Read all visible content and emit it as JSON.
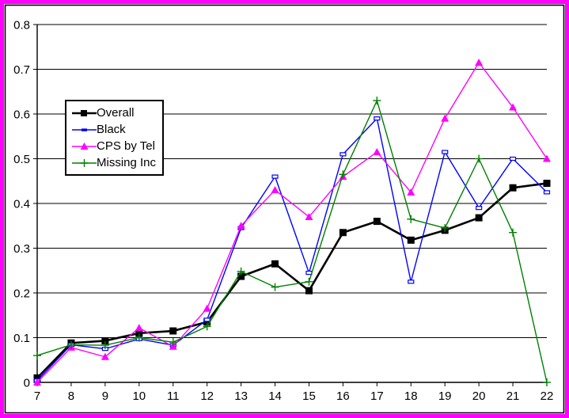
{
  "page": {
    "background_color": "#FFFFFF",
    "outer_border_color": "#FF00FF",
    "inner_border_color": "#000000"
  },
  "chart_data": {
    "type": "line",
    "title": "",
    "xlabel": "",
    "ylabel": "",
    "categories": [
      7,
      8,
      9,
      10,
      11,
      12,
      13,
      14,
      15,
      16,
      17,
      18,
      19,
      20,
      21,
      22
    ],
    "x_tick_labels": [
      "7",
      "8",
      "9",
      "10",
      "11",
      "12",
      "13",
      "14",
      "15",
      "16",
      "17",
      "18",
      "19",
      "20",
      "21",
      "22"
    ],
    "ylim": [
      0,
      0.8
    ],
    "ytick_step": 0.1,
    "y_tick_labels": [
      "0",
      "0.1",
      "0.2",
      "0.3",
      "0.4",
      "0.5",
      "0.6",
      "0.7",
      "0.8"
    ],
    "grid": "horizontal",
    "gridline_color": "#000000",
    "legend_position": "upper-left-inside",
    "series": [
      {
        "name": "Overall",
        "color": "#000000",
        "marker": "square",
        "line_width": 2.6,
        "values": [
          0.01,
          0.088,
          0.093,
          0.11,
          0.115,
          0.135,
          0.237,
          0.265,
          0.205,
          0.335,
          0.36,
          0.318,
          0.34,
          0.368,
          0.435,
          0.445
        ]
      },
      {
        "name": "Black",
        "color": "#0000FF",
        "marker": "dash",
        "line_width": 1.4,
        "values": [
          0.004,
          0.084,
          0.075,
          0.097,
          0.083,
          0.14,
          0.345,
          0.46,
          0.245,
          0.51,
          0.59,
          0.225,
          0.515,
          0.39,
          0.5,
          0.425
        ]
      },
      {
        "name": "CPS by Tel",
        "color": "#FF00FF",
        "marker": "triangle",
        "line_width": 1.4,
        "values": [
          0.0,
          0.078,
          0.057,
          0.122,
          0.08,
          0.165,
          0.35,
          0.43,
          0.37,
          0.46,
          0.515,
          0.425,
          0.59,
          0.715,
          0.615,
          0.5
        ]
      },
      {
        "name": "Missing Inc",
        "color": "#008000",
        "marker": "plus",
        "line_width": 1.4,
        "values": [
          0.06,
          0.084,
          0.083,
          0.1,
          0.09,
          0.125,
          0.248,
          0.213,
          0.225,
          0.465,
          0.63,
          0.365,
          0.345,
          0.5,
          0.335,
          0.0
        ]
      }
    ]
  }
}
